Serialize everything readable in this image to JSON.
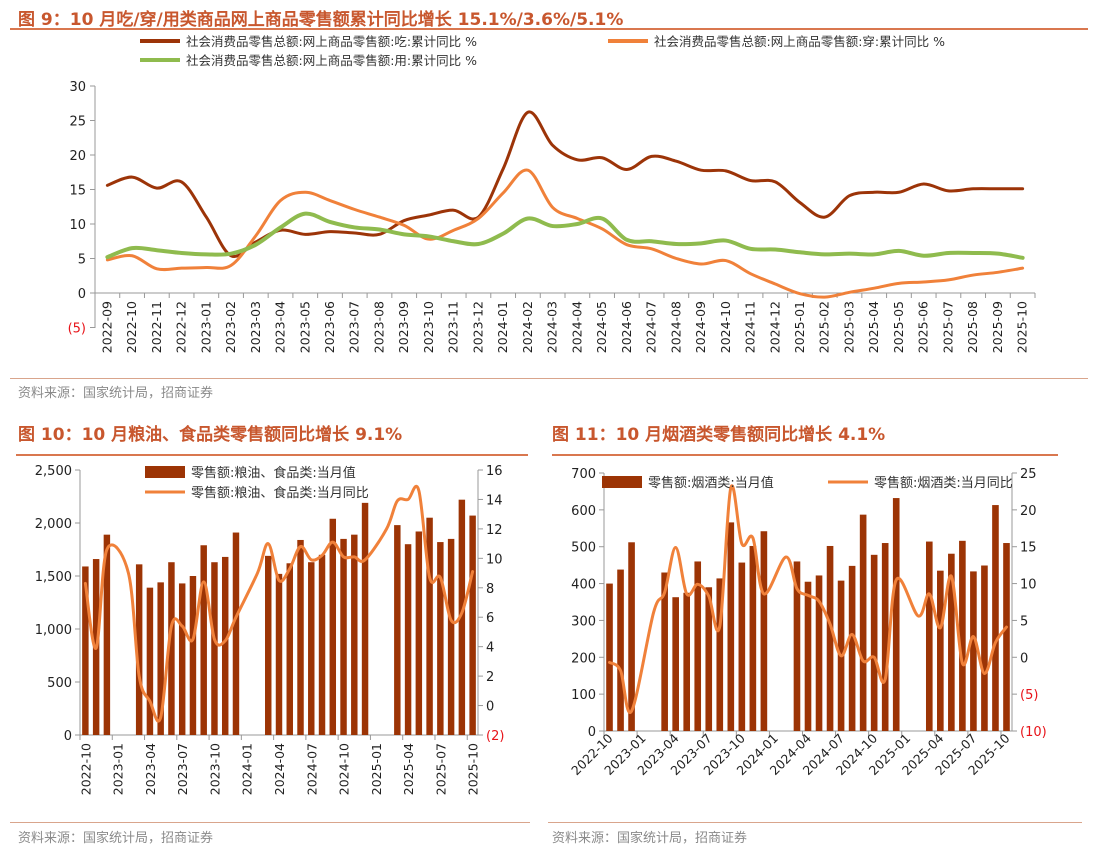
{
  "colors": {
    "eat": "#9C3408",
    "wear": "#F0813A",
    "use": "#8FBB4E",
    "bar": "#9C3405",
    "line": "#F0813A",
    "title": "#C8572E",
    "negative": "#E8141A"
  },
  "fig9": {
    "title": "图 9：10 月吃/穿/用类商品网上商品零售额累计同比增长 15.1%/3.6%/5.1%",
    "source": "资料来源：国家统计局，招商证券"
  },
  "fig10": {
    "title": "图 10：10 月粮油、食品类零售额同比增长 9.1%",
    "source": "资料来源：国家统计局，招商证券"
  },
  "fig11": {
    "title": "图 11：10 月烟酒类零售额同比增长 4.1%",
    "source": "资料来源：国家统计局，招商证券"
  },
  "chart_data": [
    {
      "type": "line",
      "title": "图 9：10 月吃/穿/用类商品网上商品零售额累计同比增长 15.1%/3.6%/5.1%",
      "ylim": [
        -5,
        30
      ],
      "yticks": [
        "(5)",
        "0",
        "5",
        "10",
        "15",
        "20",
        "25",
        "30"
      ],
      "legend": "top",
      "categories": [
        "2022-09",
        "2022-10",
        "2022-11",
        "2022-12",
        "2023-01",
        "2023-02",
        "2023-03",
        "2023-04",
        "2023-05",
        "2023-06",
        "2023-07",
        "2023-08",
        "2023-09",
        "2023-10",
        "2023-11",
        "2023-12",
        "2024-01",
        "2024-02",
        "2024-03",
        "2024-04",
        "2024-05",
        "2024-06",
        "2024-07",
        "2024-08",
        "2024-09",
        "2024-10",
        "2024-11",
        "2024-12",
        "2025-01",
        "2025-02",
        "2025-03",
        "2025-04",
        "2025-05",
        "2025-06",
        "2025-07",
        "2025-08",
        "2025-09",
        "2025-10"
      ],
      "series": [
        {
          "name": "社会消费品零售总额:网上商品零售额:吃:累计同比 %",
          "values": [
            15.6,
            16.8,
            15.2,
            16.1,
            11.0,
            5.4,
            7.4,
            9.1,
            8.5,
            8.9,
            8.7,
            8.5,
            10.5,
            11.3,
            12.0,
            11.0,
            18.0,
            26.2,
            21.4,
            19.3,
            19.6,
            17.9,
            19.8,
            19.1,
            17.8,
            17.7,
            16.3,
            16.1,
            13.1,
            11.0,
            14.1,
            14.6,
            14.6,
            15.8,
            14.8,
            15.1,
            15.1,
            15.1
          ]
        },
        {
          "name": "社会消费品零售总额:网上商品零售额:穿:累计同比 %",
          "values": [
            4.8,
            5.4,
            3.5,
            3.6,
            3.7,
            4.0,
            8.3,
            13.4,
            14.6,
            13.4,
            12.1,
            11.0,
            9.8,
            7.8,
            9.1,
            10.8,
            14.5,
            17.8,
            12.4,
            10.8,
            9.3,
            7.0,
            6.4,
            5.0,
            4.2,
            4.7,
            2.8,
            1.3,
            -0.1,
            -0.6,
            0.1,
            0.7,
            1.4,
            1.6,
            1.9,
            2.6,
            3.0,
            3.6
          ]
        },
        {
          "name": "社会消费品零售总额:网上商品零售额:用:累计同比 %",
          "values": [
            5.2,
            6.5,
            6.2,
            5.8,
            5.6,
            5.7,
            7.0,
            9.5,
            11.5,
            10.3,
            9.5,
            9.2,
            8.5,
            8.2,
            7.5,
            7.1,
            8.6,
            10.8,
            9.7,
            10.0,
            10.8,
            7.7,
            7.5,
            7.1,
            7.2,
            7.6,
            6.4,
            6.3,
            5.9,
            5.6,
            5.7,
            5.6,
            6.1,
            5.4,
            5.8,
            5.8,
            5.7,
            5.1
          ]
        }
      ]
    },
    {
      "type": "bar+line",
      "title": "图 10：10 月粮油、食品类零售额同比增长 9.1%",
      "ylim": [
        0,
        2500
      ],
      "y2lim": [
        -2,
        16
      ],
      "yticks": [
        "0",
        "500",
        "1,000",
        "1,500",
        "2,000",
        "2,500"
      ],
      "y2ticks": [
        "(2)",
        "0",
        "2",
        "4",
        "6",
        "8",
        "10",
        "12",
        "14",
        "16"
      ],
      "legend": "top",
      "xticklabels": [
        "2022-10",
        "2023-01",
        "2023-04",
        "2023-07",
        "2023-10",
        "2024-01",
        "2024-04",
        "2024-07",
        "2024-10",
        "2025-01",
        "2025-04",
        "2025-07",
        "2025-10"
      ],
      "categories": [
        "2022-10",
        "2022-11",
        "2022-12",
        "2023-01",
        "2023-02",
        "2023-03",
        "2023-04",
        "2023-05",
        "2023-06",
        "2023-07",
        "2023-08",
        "2023-09",
        "2023-10",
        "2023-11",
        "2023-12",
        "2024-01",
        "2024-02",
        "2024-03",
        "2024-04",
        "2024-05",
        "2024-06",
        "2024-07",
        "2024-08",
        "2024-09",
        "2024-10",
        "2024-11",
        "2024-12",
        "2025-01",
        "2025-02",
        "2025-03",
        "2025-04",
        "2025-05",
        "2025-06",
        "2025-07",
        "2025-08",
        "2025-09",
        "2025-10"
      ],
      "series": [
        {
          "name": "零售额:粮油、食品类:当月值",
          "axis": "left",
          "kind": "bar",
          "values": [
            1590,
            1660,
            1890,
            null,
            null,
            1610,
            1390,
            1440,
            1630,
            1430,
            1500,
            1790,
            1630,
            1680,
            1910,
            null,
            null,
            1690,
            1520,
            1620,
            1840,
            1630,
            1700,
            2040,
            1850,
            1890,
            2190,
            null,
            null,
            1980,
            1800,
            1920,
            2050,
            1820,
            1850,
            2220,
            2070
          ]
        },
        {
          "name": "零售额:粮油、食品类:当月同比",
          "axis": "right",
          "kind": "line",
          "values": [
            8.3,
            3.9,
            10.6,
            null,
            9.0,
            2.0,
            0.3,
            -0.8,
            5.4,
            5.4,
            4.5,
            8.4,
            4.5,
            4.4,
            6.0,
            null,
            9.0,
            11.0,
            8.5,
            9.3,
            10.8,
            9.9,
            10.2,
            11.1,
            10.1,
            10.1,
            9.9,
            null,
            12.0,
            13.9,
            14.0,
            14.6,
            8.7,
            8.7,
            5.8,
            6.3,
            9.1
          ]
        }
      ]
    },
    {
      "type": "bar+line",
      "title": "图 11：10 月烟酒类零售额同比增长 4.1%",
      "ylim": [
        0,
        700
      ],
      "y2lim": [
        -10,
        25
      ],
      "yticks": [
        "0",
        "100",
        "200",
        "300",
        "400",
        "500",
        "600",
        "700"
      ],
      "y2ticks": [
        "(10)",
        "(5)",
        "0",
        "5",
        "10",
        "15",
        "20",
        "25"
      ],
      "legend": "top",
      "xticklabels": [
        "2022-10",
        "2023-01",
        "2023-04",
        "2023-07",
        "2023-10",
        "2024-01",
        "2024-04",
        "2024-07",
        "2024-10",
        "2025-01",
        "2025-04",
        "2025-07",
        "2025-10"
      ],
      "categories": [
        "2022-10",
        "2022-11",
        "2022-12",
        "2023-01",
        "2023-02",
        "2023-03",
        "2023-04",
        "2023-05",
        "2023-06",
        "2023-07",
        "2023-08",
        "2023-09",
        "2023-10",
        "2023-11",
        "2023-12",
        "2024-01",
        "2024-02",
        "2024-03",
        "2024-04",
        "2024-05",
        "2024-06",
        "2024-07",
        "2024-08",
        "2024-09",
        "2024-10",
        "2024-11",
        "2024-12",
        "2025-01",
        "2025-02",
        "2025-03",
        "2025-04",
        "2025-05",
        "2025-06",
        "2025-07",
        "2025-08",
        "2025-09",
        "2025-10"
      ],
      "series": [
        {
          "name": "零售额:烟酒类:当月值",
          "axis": "left",
          "kind": "bar",
          "values": [
            400,
            438,
            512,
            null,
            null,
            430,
            363,
            375,
            460,
            390,
            414,
            566,
            457,
            502,
            542,
            null,
            null,
            460,
            405,
            422,
            502,
            408,
            448,
            587,
            478,
            510,
            632,
            null,
            null,
            514,
            435,
            481,
            516,
            433,
            449,
            613,
            510
          ]
        },
        {
          "name": "零售额:烟酒类:当月同比",
          "axis": "right",
          "kind": "line",
          "values": [
            -0.7,
            -1.8,
            -7.3,
            null,
            6.1,
            8.8,
            14.9,
            8.6,
            9.9,
            8.3,
            4.2,
            23.0,
            15.4,
            16.2,
            8.6,
            null,
            13.6,
            9.3,
            8.4,
            7.6,
            4.5,
            0.2,
            3.1,
            -0.5,
            0.0,
            -3.0,
            10.5,
            null,
            5.6,
            8.6,
            4.0,
            11.0,
            -0.8,
            2.8,
            -2.2,
            2.0,
            4.1
          ]
        }
      ]
    }
  ]
}
